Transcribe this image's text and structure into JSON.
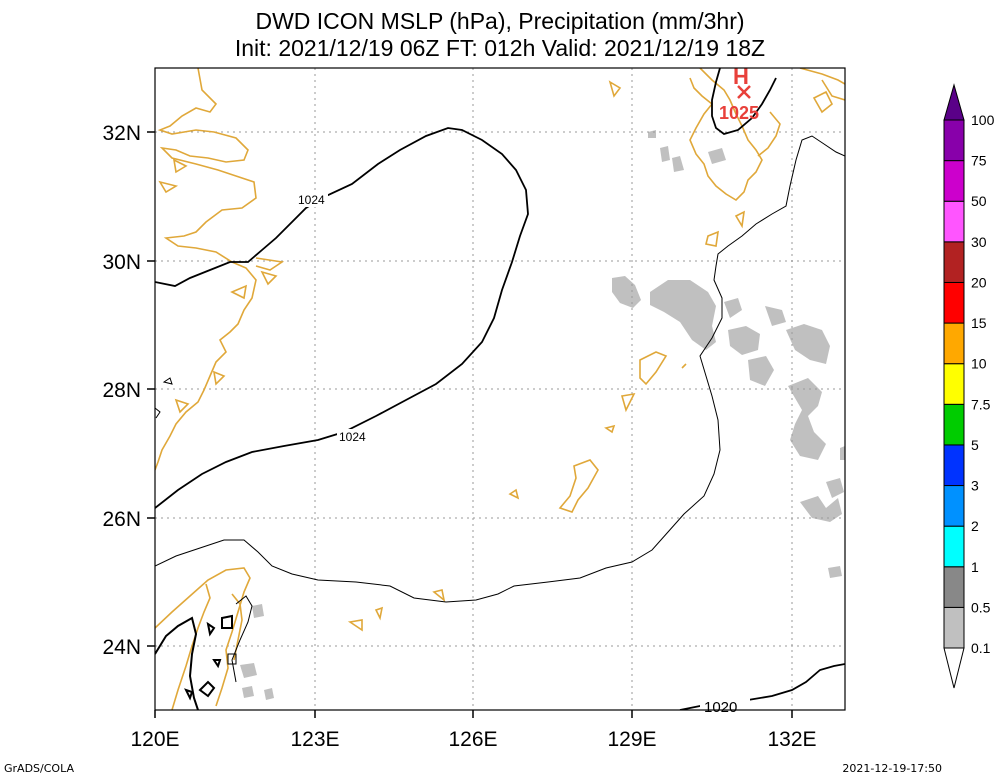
{
  "title_line1": "DWD ICON MSLP (hPa), Precipitation (mm/3hr)",
  "title_line2": "Init: 2021/12/19 06Z  FT: 012h  Valid: 2021/12/19 18Z",
  "map": {
    "lon_ticks": [
      "120E",
      "123E",
      "126E",
      "129E",
      "132E"
    ],
    "lat_ticks": [
      "32N",
      "30N",
      "28N",
      "26N",
      "24N"
    ],
    "grid": true,
    "isobar_labels": [
      "1024",
      "1024",
      "1020"
    ],
    "high_center": {
      "marker": "H",
      "value": "1025"
    }
  },
  "colorbar": {
    "labels": [
      "0.1",
      "0.5",
      "1",
      "2",
      "3",
      "5",
      "7.5",
      "10",
      "15",
      "20",
      "30",
      "50",
      "75",
      "100"
    ],
    "colors": [
      "#c0c0c0",
      "#888888",
      "#00ffff",
      "#0091ff",
      "#0033ff",
      "#00cc00",
      "#ffff00",
      "#ffa800",
      "#ff0000",
      "#b22222",
      "#ff55ff",
      "#cc00cc",
      "#8800aa",
      "#5a0088"
    ]
  },
  "footer": {
    "left": "GrADS/COLA",
    "right": "2021-12-19-17:50"
  }
}
